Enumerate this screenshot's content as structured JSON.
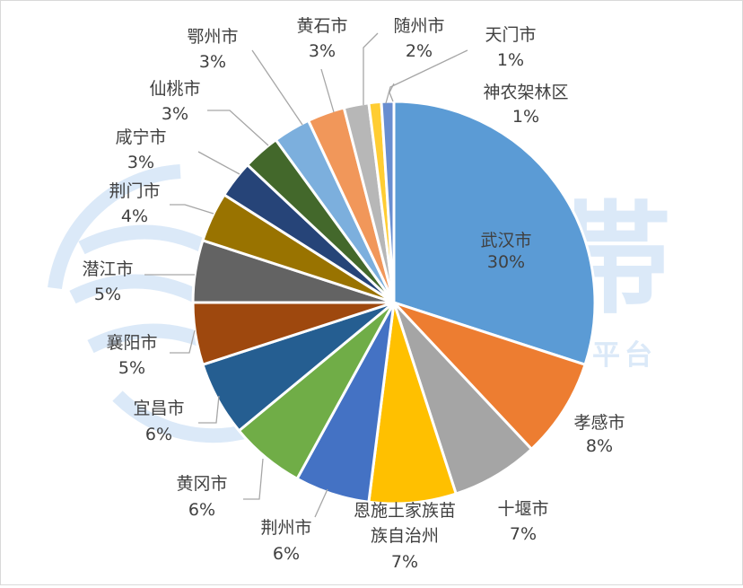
{
  "chart_data": {
    "type": "pie",
    "title": "",
    "slices": [
      {
        "name": "武汉市",
        "value": 30,
        "label": "30%",
        "color": "#5B9BD5"
      },
      {
        "name": "孝感市",
        "value": 8,
        "label": "8%",
        "color": "#ED7D31"
      },
      {
        "name": "十堰市",
        "value": 7,
        "label": "7%",
        "color": "#A5A5A5"
      },
      {
        "name": "恩施土家族苗族自治州",
        "value": 7,
        "label": "7%",
        "color": "#FFC000"
      },
      {
        "name": "荆州市",
        "value": 6,
        "label": "6%",
        "color": "#4472C4"
      },
      {
        "name": "黄冈市",
        "value": 6,
        "label": "6%",
        "color": "#70AD47"
      },
      {
        "name": "宜昌市",
        "value": 6,
        "label": "6%",
        "color": "#255E91"
      },
      {
        "name": "襄阳市",
        "value": 5,
        "label": "5%",
        "color": "#9E480E"
      },
      {
        "name": "潜江市",
        "value": 5,
        "label": "5%",
        "color": "#636363"
      },
      {
        "name": "荆门市",
        "value": 4,
        "label": "4%",
        "color": "#997300"
      },
      {
        "name": "咸宁市",
        "value": 3,
        "label": "3%",
        "color": "#264478"
      },
      {
        "name": "仙桃市",
        "value": 3,
        "label": "3%",
        "color": "#43682B"
      },
      {
        "name": "鄂州市",
        "value": 3,
        "label": "3%",
        "color": "#7CAFDD"
      },
      {
        "name": "黄石市",
        "value": 3,
        "label": "3%",
        "color": "#F1975A"
      },
      {
        "name": "随州市",
        "value": 2,
        "label": "2%",
        "color": "#B7B7B7"
      },
      {
        "name": "天门市",
        "value": 1,
        "label": "1%",
        "color": "#FFCD33"
      },
      {
        "name": "神农架林区",
        "value": 1,
        "label": "1%",
        "color": "#698ED0"
      }
    ]
  },
  "watermark": {
    "brand": "纵海帯",
    "tagline": "文旅咨询数字化服务平台",
    "color": "#dbe9f8"
  }
}
